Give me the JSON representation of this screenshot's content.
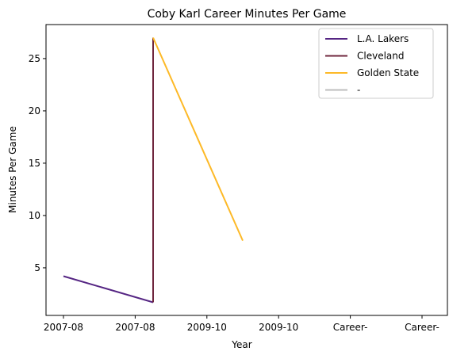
{
  "chart_data": {
    "type": "line",
    "title": "Coby Karl Career Minutes Per Game",
    "xlabel": "Year",
    "ylabel": "Minutes Per Game",
    "categories": [
      "2007-08",
      "2007-08",
      "2009-10",
      "2009-10",
      "Career-",
      "Career-"
    ],
    "ylim": [
      0.45,
      28.25
    ],
    "yticks": [
      5,
      10,
      15,
      20,
      25
    ],
    "grid": false,
    "legend_position": "top-right",
    "series": [
      {
        "name": "L.A. Lakers",
        "color": "#552583",
        "points": [
          [
            0,
            4.2
          ],
          [
            1.25,
            1.7
          ]
        ]
      },
      {
        "name": "Cleveland",
        "color": "#6F263D",
        "points": [
          [
            1.25,
            1.7
          ],
          [
            1.25,
            27.0
          ]
        ]
      },
      {
        "name": "Golden State",
        "color": "#FDB927",
        "points": [
          [
            1.25,
            27.0
          ],
          [
            2.5,
            7.6
          ]
        ]
      },
      {
        "name": "-",
        "color": "#BEBEBE",
        "points": []
      }
    ]
  }
}
